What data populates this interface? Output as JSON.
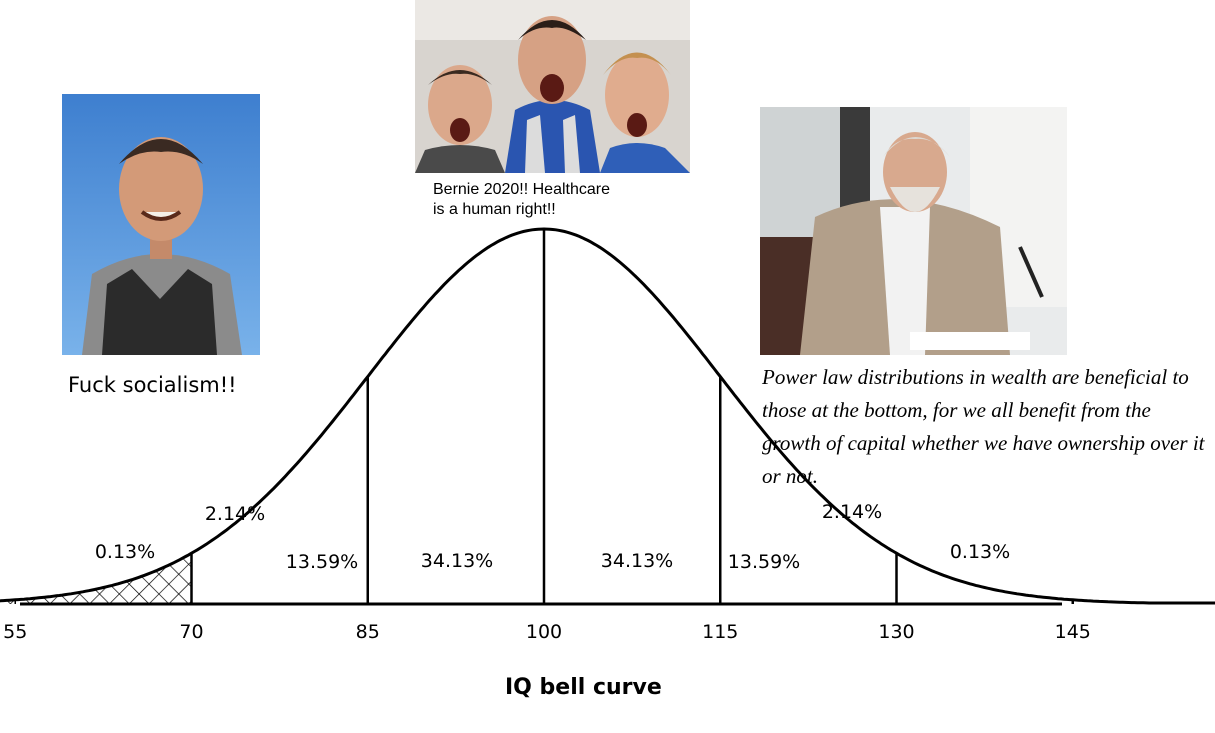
{
  "chart_data": {
    "type": "area",
    "title": "IQ bell curve",
    "x_ticks": [
      55,
      70,
      85,
      100,
      115,
      130,
      145
    ],
    "segments": [
      {
        "from": null,
        "to": 55,
        "label": "0.13%",
        "value": 0.13
      },
      {
        "from": 55,
        "to": 70,
        "label": "2.14%",
        "value": 2.14
      },
      {
        "from": 70,
        "to": 85,
        "label": "13.59%",
        "value": 13.59
      },
      {
        "from": 85,
        "to": 100,
        "label": "34.13%",
        "value": 34.13
      },
      {
        "from": 100,
        "to": 115,
        "label": "34.13%",
        "value": 34.13
      },
      {
        "from": 115,
        "to": 130,
        "label": "13.59%",
        "value": 13.59
      },
      {
        "from": 130,
        "to": 145,
        "label": "2.14%",
        "value": 2.14
      },
      {
        "from": 145,
        "to": null,
        "label": "0.13%",
        "value": 0.13
      }
    ],
    "distribution": {
      "mean": 100,
      "sd": 15
    },
    "shaded_region": {
      "from": null,
      "to": 70,
      "pattern": "crosshatch"
    }
  },
  "captions": {
    "left": "Fuck socialism!!",
    "middle_line1": "Bernie 2020!! Healthcare",
    "middle_line2": "is a human right!!",
    "right": "Power law distributions in wealth are beneficial to those at the bottom, for we all benefit from the growth of capital whether we have ownership over it or not."
  },
  "photos": {
    "left": "photo of smiling man in overalls",
    "middle": "photo of three excited men",
    "right": "photo of older man in suit writing"
  }
}
